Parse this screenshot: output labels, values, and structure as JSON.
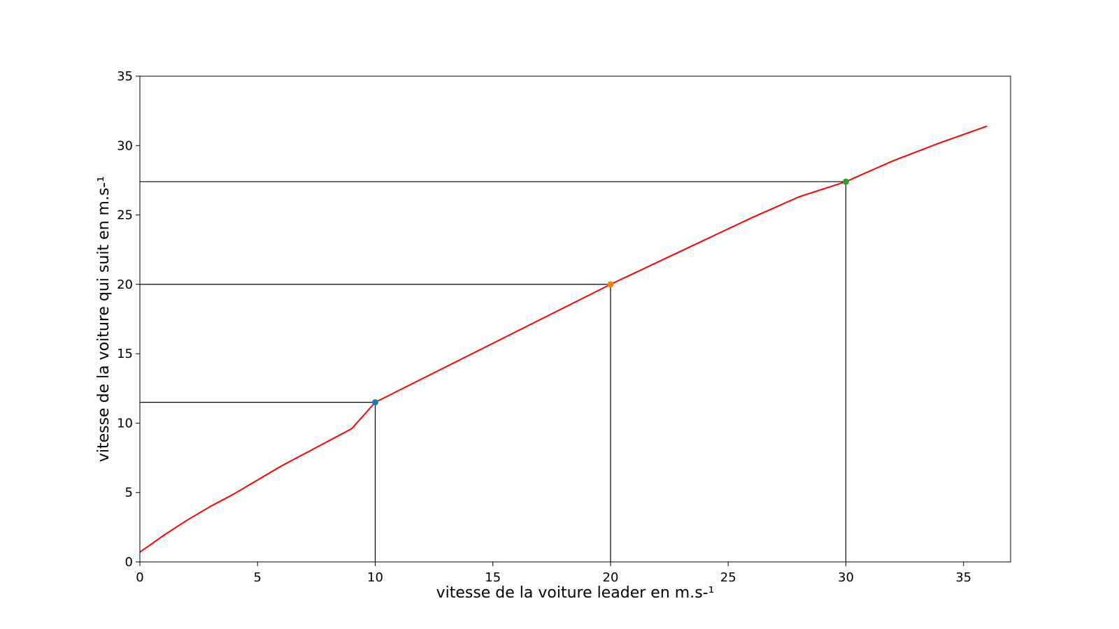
{
  "chart_data": {
    "type": "line",
    "title": "",
    "xlabel": "vitesse de la voiture leader en m.s-¹",
    "ylabel": "vitesse de la voiture qui suit en m.s-¹",
    "xlim": [
      0,
      37
    ],
    "ylim": [
      0,
      35
    ],
    "xticks": [
      0,
      5,
      10,
      15,
      20,
      25,
      30,
      35
    ],
    "yticks": [
      0,
      5,
      10,
      15,
      20,
      25,
      30,
      35
    ],
    "grid": false,
    "legend": "none",
    "series": [
      {
        "color": "#ff0000",
        "x": [
          0,
          1,
          2,
          3,
          4,
          5,
          6,
          7,
          8,
          9,
          10,
          12,
          14,
          16,
          18,
          20,
          22,
          24,
          26,
          28,
          30,
          32,
          34,
          36
        ],
        "y": [
          0.7,
          1.9,
          3.0,
          4.0,
          4.9,
          5.9,
          6.9,
          7.8,
          8.7,
          9.6,
          11.5,
          13.2,
          14.9,
          16.6,
          18.3,
          20.0,
          21.6,
          23.2,
          24.8,
          26.3,
          27.4,
          28.9,
          30.2,
          31.4
        ]
      }
    ],
    "markers": [
      {
        "x": 10,
        "y": 11.5,
        "color": "#1f77b4"
      },
      {
        "x": 20,
        "y": 20.0,
        "color": "#ff7f0e"
      },
      {
        "x": 30,
        "y": 27.4,
        "color": "#2ca02c"
      }
    ],
    "reference_lines_color": "#000000"
  }
}
